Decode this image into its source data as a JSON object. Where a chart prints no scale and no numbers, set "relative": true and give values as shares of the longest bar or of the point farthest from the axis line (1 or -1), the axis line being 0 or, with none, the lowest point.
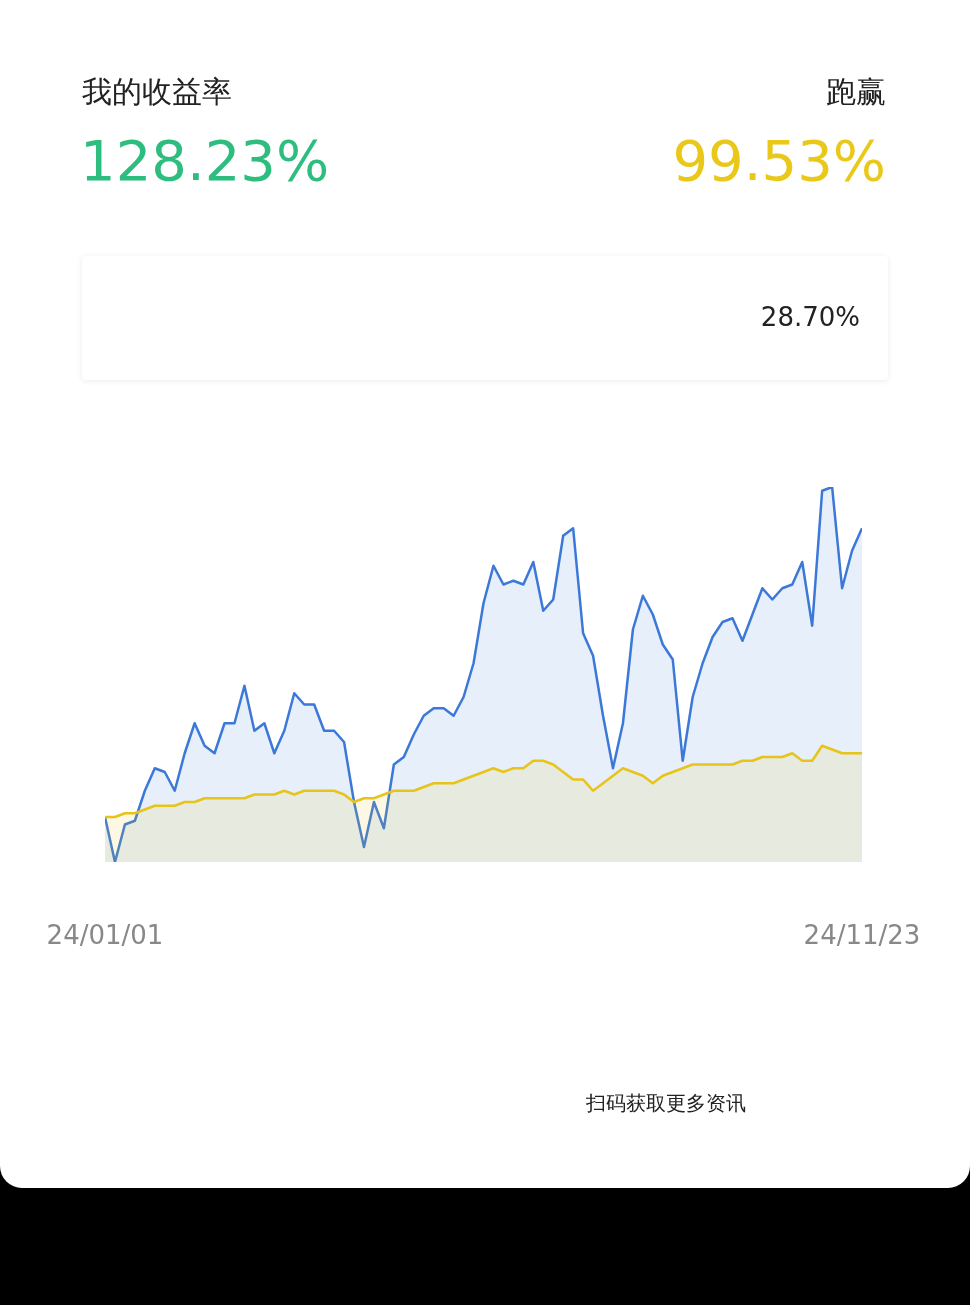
{
  "chart_data": {
    "type": "area",
    "relative": true,
    "legend": false,
    "marker": "none",
    "line_style": "solid",
    "categories": [
      "24/01/01",
      null,
      null,
      null,
      null,
      null,
      null,
      null,
      null,
      null,
      null,
      null,
      null,
      null,
      null,
      null,
      null,
      null,
      null,
      null,
      null,
      null,
      null,
      null,
      null,
      null,
      null,
      null,
      null,
      null,
      null,
      null,
      null,
      null,
      null,
      null,
      null,
      null,
      null,
      null,
      null,
      null,
      null,
      null,
      null,
      null,
      null,
      null,
      null,
      null,
      null,
      null,
      null,
      null,
      null,
      null,
      null,
      null,
      null,
      null,
      null,
      null,
      null,
      null,
      null,
      null,
      null,
      null,
      null,
      null,
      null,
      null,
      null,
      null,
      null,
      null,
      "24/11/23"
    ],
    "series": [
      {
        "color": "#3b78d8",
        "values": [
          0.12,
          0,
          0.1,
          0.11,
          0.19,
          0.25,
          0.24,
          0.19,
          0.29,
          0.37,
          0.31,
          0.29,
          0.37,
          0.37,
          0.47,
          0.35,
          0.37,
          0.29,
          0.35,
          0.45,
          0.42,
          0.42,
          0.35,
          0.35,
          0.32,
          0.16,
          0.04,
          0.16,
          0.09,
          0.26,
          0.28,
          0.34,
          0.39,
          0.41,
          0.41,
          0.39,
          0.44,
          0.53,
          0.69,
          0.79,
          0.74,
          0.75,
          0.74,
          0.8,
          0.67,
          0.7,
          0.87,
          0.89,
          0.61,
          0.55,
          0.39,
          0.25,
          0.37,
          0.62,
          0.71,
          0.66,
          0.58,
          0.54,
          0.27,
          0.44,
          0.53,
          0.6,
          0.64,
          0.65,
          0.59,
          0.66,
          0.73,
          0.7,
          0.73,
          0.74,
          0.8,
          0.63,
          0.99,
          1,
          0.73,
          0.83,
          0.89
        ]
      },
      {
        "color": "#e8c31a",
        "values": [
          0.12,
          0.12,
          0.13,
          0.13,
          0.14,
          0.15,
          0.15,
          0.15,
          0.16,
          0.16,
          0.17,
          0.17,
          0.17,
          0.17,
          0.17,
          0.18,
          0.18,
          0.18,
          0.19,
          0.18,
          0.19,
          0.19,
          0.19,
          0.19,
          0.18,
          0.16,
          0.17,
          0.17,
          0.18,
          0.19,
          0.19,
          0.19,
          0.2,
          0.21,
          0.21,
          0.21,
          0.22,
          0.23,
          0.24,
          0.25,
          0.24,
          0.25,
          0.25,
          0.27,
          0.27,
          0.26,
          0.24,
          0.22,
          0.22,
          0.19,
          0.21,
          0.23,
          0.25,
          0.24,
          0.23,
          0.21,
          0.23,
          0.24,
          0.25,
          0.26,
          0.26,
          0.26,
          0.26,
          0.26,
          0.27,
          0.27,
          0.28,
          0.28,
          0.28,
          0.29,
          0.27,
          0.27,
          0.31,
          0.3,
          0.29,
          0.29,
          0.29
        ]
      }
    ],
    "annotations": [
      "我的收益率",
      "128.23%",
      "跑赢",
      "99.53%",
      "28.70%",
      "扫码获取更多资讯"
    ]
  }
}
